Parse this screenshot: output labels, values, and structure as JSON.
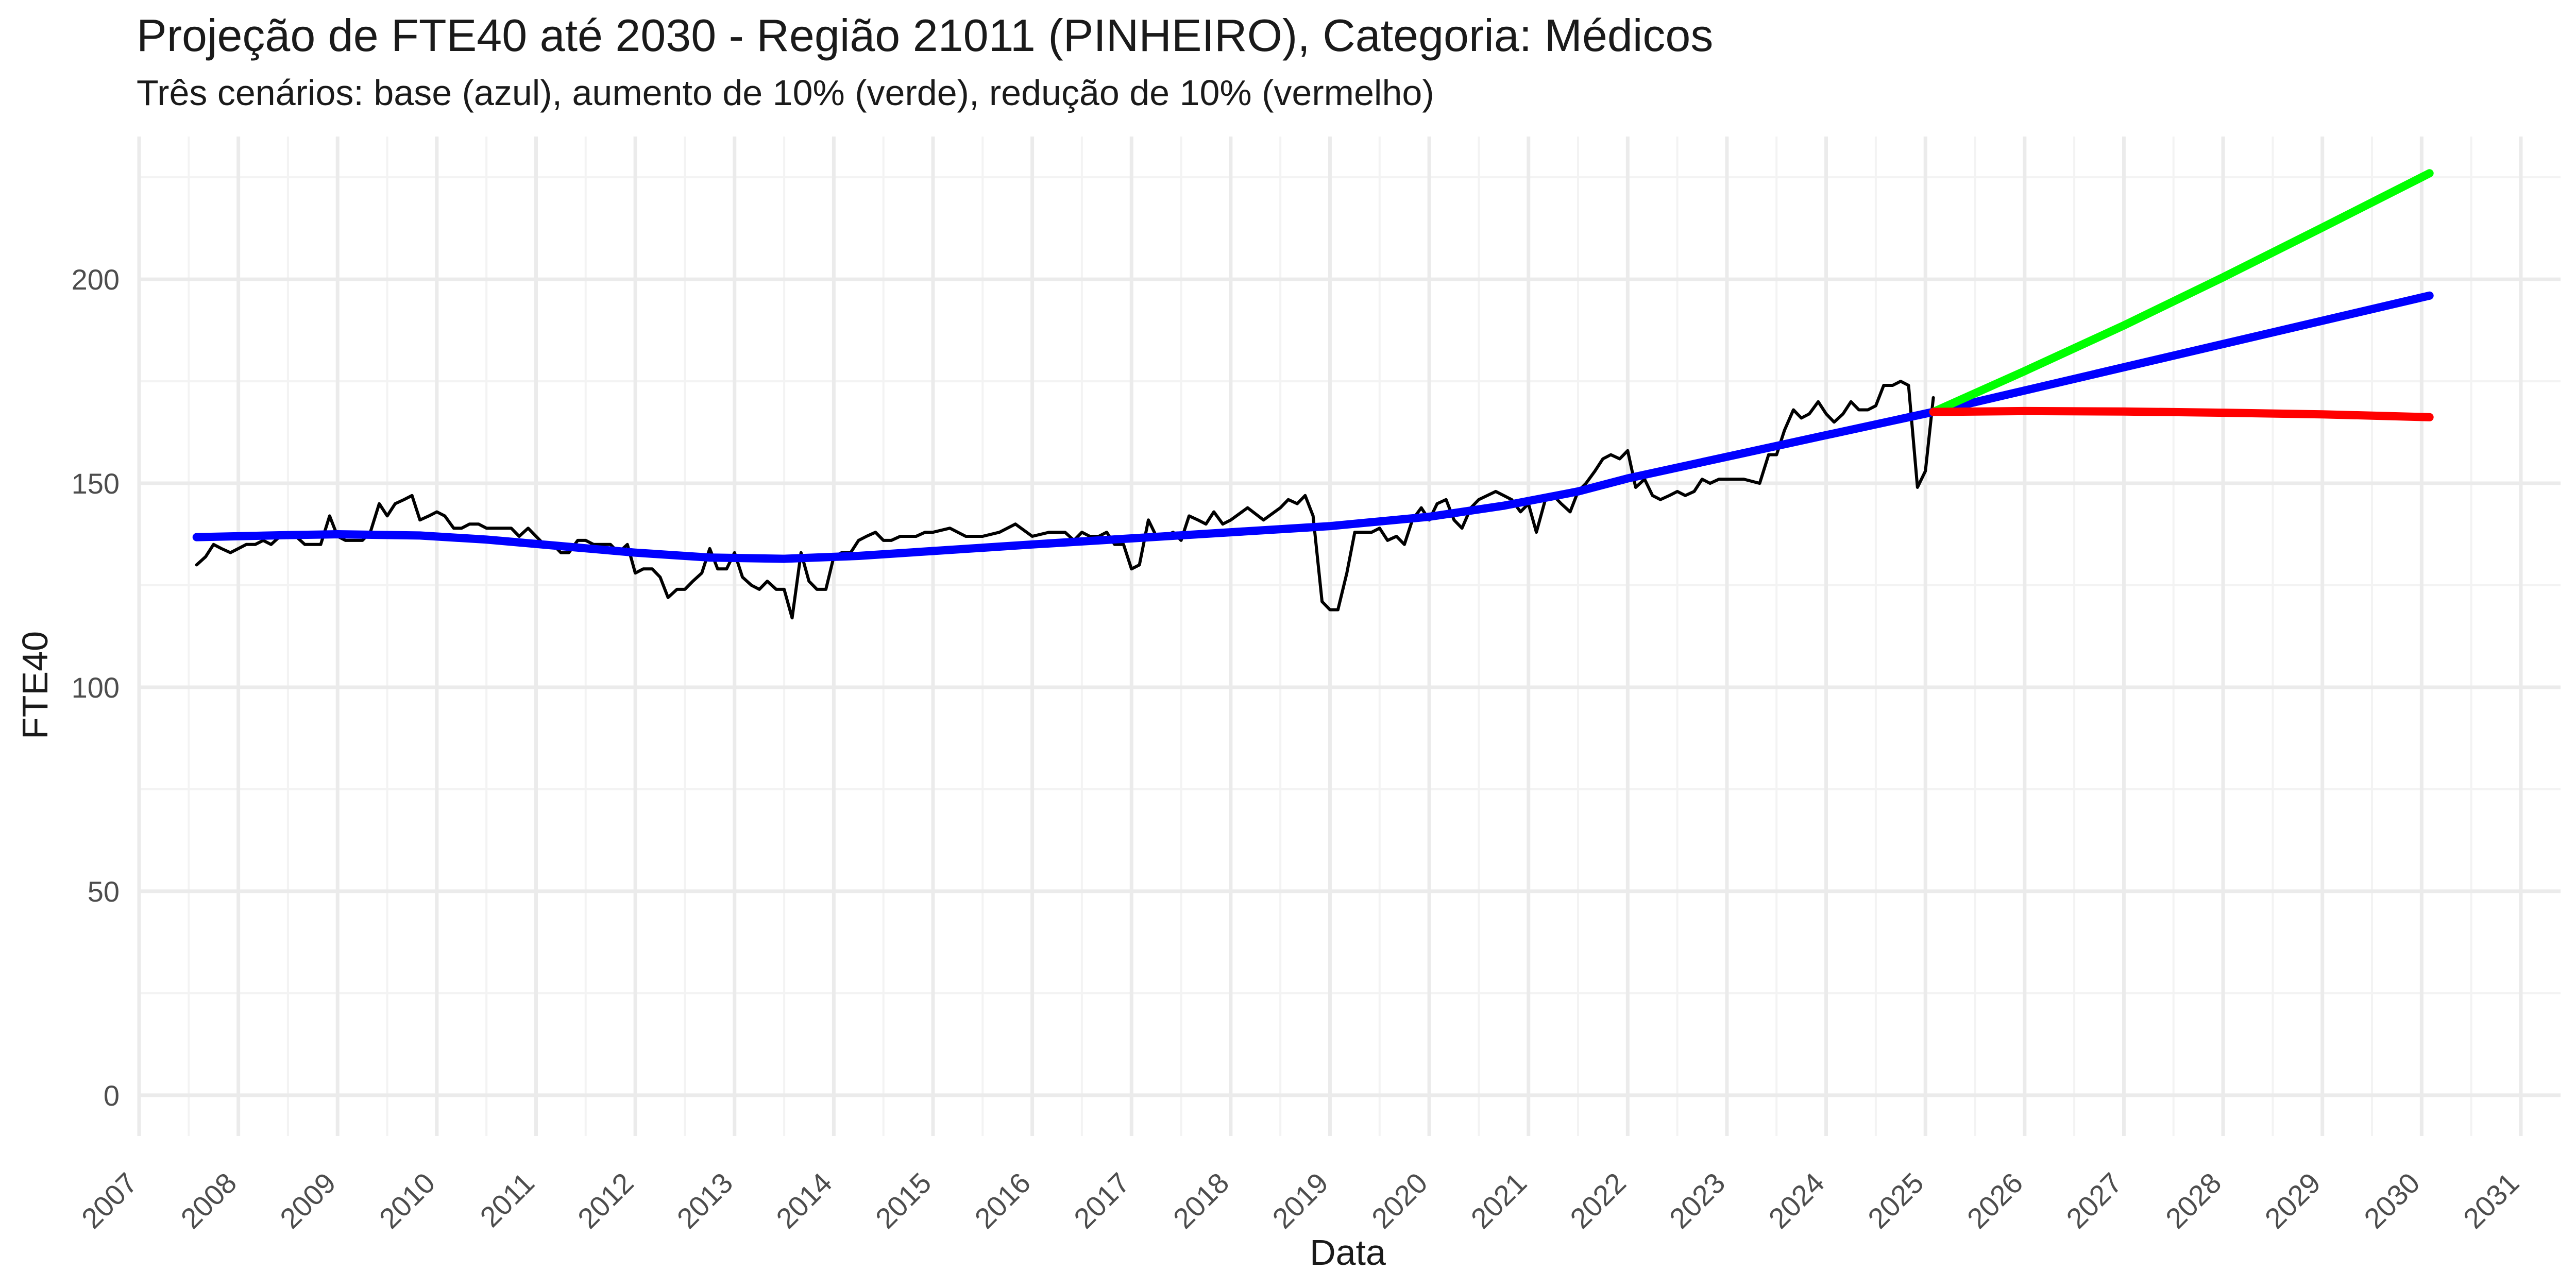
{
  "chart_data": {
    "type": "line",
    "title": "Projeção de FTE40 até 2030 - Região 21011 (PINHEIRO), Categoria: Médicos",
    "subtitle": "Três cenários: base (azul), aumento de 10% (verde), redução de 10% (vermelho)",
    "xlabel": "Data",
    "ylabel": "FTE40",
    "xlim": [
      2007.0,
      2031.4
    ],
    "ylim": [
      -10,
      235
    ],
    "y_ticks": [
      0,
      50,
      100,
      150,
      200
    ],
    "x_ticks": [
      "2007",
      "2008",
      "2009",
      "2010",
      "2011",
      "2012",
      "2013",
      "2014",
      "2015",
      "2016",
      "2017",
      "2018",
      "2019",
      "2020",
      "2021",
      "2022",
      "2023",
      "2024",
      "2025",
      "2026",
      "2027",
      "2028",
      "2029",
      "2030",
      "2031"
    ],
    "grid": true,
    "legend": "none",
    "series": [
      {
        "color": "#000000",
        "x": [
          2007.58,
          2007.67,
          2007.75,
          2007.83,
          2007.92,
          2008.0,
          2008.08,
          2008.17,
          2008.25,
          2008.33,
          2008.42,
          2008.5,
          2008.58,
          2008.67,
          2008.75,
          2008.83,
          2008.92,
          2009.0,
          2009.08,
          2009.17,
          2009.25,
          2009.33,
          2009.42,
          2009.5,
          2009.58,
          2009.67,
          2009.75,
          2009.83,
          2009.92,
          2010.0,
          2010.08,
          2010.17,
          2010.25,
          2010.33,
          2010.42,
          2010.5,
          2010.58,
          2010.67,
          2010.75,
          2010.83,
          2010.92,
          2011.0,
          2011.08,
          2011.17,
          2011.25,
          2011.33,
          2011.42,
          2011.5,
          2011.58,
          2011.67,
          2011.75,
          2011.83,
          2011.92,
          2012.0,
          2012.08,
          2012.17,
          2012.25,
          2012.33,
          2012.42,
          2012.5,
          2012.58,
          2012.67,
          2012.75,
          2012.83,
          2012.92,
          2013.0,
          2013.08,
          2013.17,
          2013.25,
          2013.33,
          2013.42,
          2013.5,
          2013.58,
          2013.67,
          2013.75,
          2013.83,
          2013.92,
          2014.0,
          2014.08,
          2014.17,
          2014.25,
          2014.33,
          2014.42,
          2014.5,
          2014.58,
          2014.67,
          2014.75,
          2014.83,
          2014.92,
          2015.0,
          2015.17,
          2015.33,
          2015.5,
          2015.67,
          2015.83,
          2016.0,
          2016.17,
          2016.33,
          2016.42,
          2016.5,
          2016.58,
          2016.67,
          2016.75,
          2016.83,
          2016.92,
          2017.0,
          2017.08,
          2017.17,
          2017.25,
          2017.33,
          2017.42,
          2017.5,
          2017.58,
          2017.67,
          2017.75,
          2017.83,
          2017.92,
          2018.0,
          2018.17,
          2018.33,
          2018.5,
          2018.58,
          2018.67,
          2018.75,
          2018.83,
          2018.92,
          2019.0,
          2019.08,
          2019.17,
          2019.25,
          2019.33,
          2019.42,
          2019.5,
          2019.58,
          2019.67,
          2019.75,
          2019.83,
          2019.92,
          2020.0,
          2020.08,
          2020.17,
          2020.25,
          2020.33,
          2020.42,
          2020.5,
          2020.67,
          2020.83,
          2020.92,
          2021.0,
          2021.08,
          2021.17,
          2021.25,
          2021.33,
          2021.42,
          2021.5,
          2021.58,
          2021.67,
          2021.75,
          2021.83,
          2021.92,
          2022.0,
          2022.08,
          2022.17,
          2022.25,
          2022.33,
          2022.42,
          2022.5,
          2022.58,
          2022.67,
          2022.75,
          2022.83,
          2022.92,
          2023.0,
          2023.17,
          2023.33,
          2023.42,
          2023.5,
          2023.58,
          2023.67,
          2023.75,
          2023.83,
          2023.92,
          2024.0,
          2024.08,
          2024.17,
          2024.25,
          2024.33,
          2024.42,
          2024.5,
          2024.58,
          2024.67,
          2024.75,
          2024.83,
          2024.92,
          2025.0,
          2025.08
        ],
        "y": [
          130,
          132,
          135,
          134,
          133,
          134,
          135,
          135,
          136,
          135,
          137,
          137,
          137,
          135,
          135,
          135,
          142,
          137,
          136,
          136,
          136,
          138,
          145,
          142,
          145,
          146,
          147,
          141,
          142,
          143,
          142,
          139,
          139,
          140,
          140,
          139,
          139,
          139,
          139,
          137,
          139,
          137,
          135,
          135,
          133,
          133,
          136,
          136,
          135,
          135,
          135,
          133,
          135,
          128,
          129,
          129,
          127,
          122,
          124,
          124,
          126,
          128,
          134,
          129,
          129,
          133,
          127,
          125,
          124,
          126,
          124,
          124,
          117,
          133,
          126,
          124,
          124,
          132,
          133,
          133,
          136,
          137,
          138,
          136,
          136,
          137,
          137,
          137,
          138,
          138,
          139,
          137,
          137,
          138,
          140,
          137,
          138,
          138,
          136,
          138,
          137,
          137,
          138,
          135,
          135,
          129,
          130,
          141,
          137,
          137,
          138,
          136,
          142,
          141,
          140,
          143,
          140,
          141,
          144,
          141,
          144,
          146,
          145,
          147,
          142,
          121,
          119,
          119,
          128,
          138,
          138,
          138,
          139,
          136,
          137,
          135,
          141,
          144,
          141,
          145,
          146,
          141,
          139,
          144,
          146,
          148,
          146,
          143,
          145,
          138,
          146,
          147,
          145,
          143,
          148,
          150,
          153,
          156,
          157,
          156,
          158,
          149,
          151,
          147,
          146,
          147,
          148,
          147,
          148,
          151,
          150,
          151,
          151,
          151,
          150,
          157,
          157,
          163,
          168,
          166,
          167,
          170,
          167,
          165,
          167,
          170,
          168,
          168,
          169,
          174,
          174,
          175,
          174,
          149,
          153,
          171
        ]
      },
      {
        "color": "#0000ff",
        "x": [
          2007.58,
          2008.5,
          2009.0,
          2009.83,
          2010.5,
          2011.25,
          2012.0,
          2012.75,
          2013.5,
          2014.25,
          2015.0,
          2016.0,
          2017.0,
          2018.0,
          2019.0,
          2020.0,
          2020.75,
          2021.5,
          2022.0,
          2023.0,
          2024.0,
          2025.08
        ],
        "y": [
          136.8,
          137.3,
          137.5,
          137.2,
          136.2,
          134.6,
          133.0,
          131.8,
          131.5,
          132.2,
          133.4,
          135.0,
          136.5,
          138.0,
          139.5,
          141.8,
          144.5,
          148.0,
          151.2,
          156.5,
          161.8,
          167.5
        ]
      },
      {
        "color": "#0000ff",
        "x": [
          2025.08,
          2030.08
        ],
        "y": [
          167.5,
          196.0
        ]
      },
      {
        "color": "#00ff00",
        "x": [
          2025.08,
          2026.0,
          2027.0,
          2028.0,
          2029.0,
          2030.08
        ],
        "y": [
          167.5,
          177.5,
          188.7,
          200.5,
          212.7,
          226.0
        ]
      },
      {
        "color": "#ff0000",
        "x": [
          2025.08,
          2026.0,
          2027.0,
          2028.0,
          2029.0,
          2030.08
        ],
        "y": [
          167.5,
          167.7,
          167.6,
          167.3,
          166.9,
          166.2
        ]
      }
    ]
  }
}
